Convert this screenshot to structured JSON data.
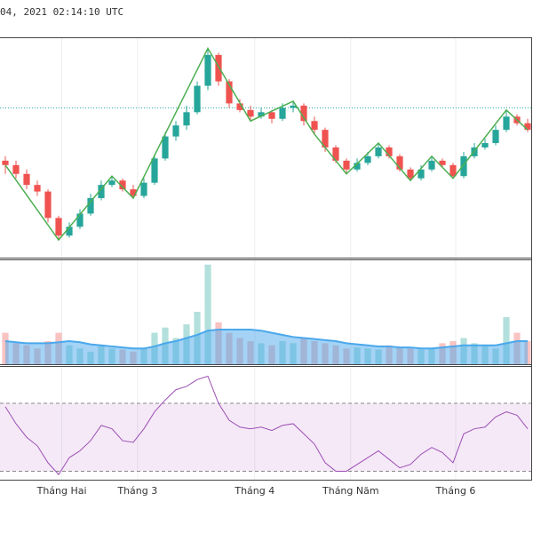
{
  "timestamp": "04, 2021 02:14:10 UTC",
  "chart_data": [
    {
      "type": "candlestick",
      "xlim": [
        -0.5,
        49.5
      ],
      "ylim": [
        0,
        100
      ],
      "grid": true,
      "xticks": [
        {
          "value": 5.3,
          "label": "Tháng Hai"
        },
        {
          "value": 12.4,
          "label": "Tháng 3"
        },
        {
          "value": 23.4,
          "label": "Tháng 4"
        },
        {
          "value": 32.4,
          "label": "Tháng Năm"
        },
        {
          "value": 42.25,
          "label": "Tháng 6"
        }
      ],
      "up_color": "#26a69a",
      "down_color": "#ef5350",
      "open": [
        44,
        42,
        38,
        33,
        30,
        18,
        10,
        14,
        20,
        27,
        33,
        35,
        31,
        28,
        34,
        45,
        55,
        60,
        66,
        78,
        92,
        80,
        70,
        67,
        64,
        66,
        63,
        68,
        69,
        62,
        58,
        50,
        44,
        40,
        43,
        46,
        50,
        46,
        40,
        36,
        40,
        44,
        42,
        37,
        46,
        50,
        52,
        58,
        64,
        61
      ],
      "high": [
        46,
        44,
        40,
        35,
        31,
        19,
        16,
        22,
        29,
        35,
        37,
        36,
        33,
        36,
        47,
        57,
        62,
        69,
        80,
        95,
        93,
        81,
        72,
        69,
        68,
        67,
        70,
        71,
        70,
        64,
        59,
        51,
        45,
        45,
        48,
        52,
        51,
        47,
        41,
        42,
        46,
        45,
        43,
        48,
        52,
        54,
        60,
        67,
        65,
        63
      ],
      "low": [
        38,
        36,
        31,
        28,
        16,
        8,
        9,
        13,
        19,
        26,
        32,
        30,
        27,
        27,
        33,
        44,
        53,
        58,
        65,
        76,
        78,
        68,
        66,
        62,
        63,
        61,
        62,
        66,
        60,
        56,
        48,
        43,
        38,
        39,
        42,
        45,
        45,
        39,
        35,
        35,
        39,
        41,
        36,
        36,
        45,
        49,
        51,
        57,
        60,
        57
      ],
      "close": [
        42,
        38,
        33,
        30,
        18,
        10,
        14,
        20,
        27,
        33,
        35,
        31,
        28,
        34,
        45,
        55,
        60,
        66,
        78,
        92,
        80,
        70,
        67,
        64,
        66,
        63,
        68,
        69,
        62,
        58,
        50,
        44,
        40,
        43,
        46,
        50,
        46,
        40,
        36,
        40,
        44,
        42,
        37,
        46,
        50,
        52,
        58,
        64,
        61,
        58
      ],
      "zigzag": {
        "color": "#4caf50",
        "x": [
          0,
          5,
          10,
          12,
          19,
          23,
          27,
          29,
          32,
          35,
          38,
          40,
          42,
          47,
          49
        ],
        "values": [
          42,
          8,
          37,
          27,
          95,
          62,
          71,
          56,
          38,
          52,
          35,
          46,
          36,
          67,
          58
        ]
      },
      "price_line": {
        "value": 68,
        "color": "#26a69a"
      }
    },
    {
      "type": "bar",
      "ylim": [
        0,
        100
      ],
      "values": [
        30,
        20,
        18,
        15,
        22,
        30,
        18,
        15,
        12,
        18,
        15,
        14,
        12,
        15,
        30,
        35,
        25,
        38,
        50,
        95,
        40,
        30,
        25,
        22,
        20,
        18,
        22,
        20,
        25,
        22,
        20,
        18,
        15,
        16,
        15,
        14,
        18,
        16,
        15,
        14,
        15,
        20,
        22,
        25,
        20,
        18,
        15,
        45,
        30,
        22
      ],
      "ma": [
        22,
        21,
        20,
        20,
        20,
        21,
        22,
        21,
        19,
        18,
        17,
        16,
        15,
        15,
        17,
        20,
        22,
        25,
        28,
        32,
        33,
        33,
        33,
        33,
        32,
        30,
        28,
        26,
        25,
        24,
        23,
        22,
        20,
        19,
        18,
        17,
        17,
        16,
        16,
        15,
        15,
        16,
        17,
        18,
        18,
        18,
        18,
        20,
        22,
        22
      ],
      "ma_color": "#4aa8ec"
    },
    {
      "type": "line",
      "ylim": [
        25,
        92
      ],
      "bands": [
        30,
        70
      ],
      "color": "#9c4fb5",
      "values": [
        68,
        58,
        50,
        45,
        35,
        28,
        38,
        42,
        48,
        57,
        55,
        48,
        47,
        55,
        65,
        72,
        78,
        80,
        84,
        86,
        70,
        60,
        56,
        55,
        56,
        54,
        57,
        58,
        52,
        46,
        35,
        30,
        30,
        34,
        38,
        42,
        37,
        32,
        34,
        40,
        44,
        41,
        35,
        52,
        55,
        56,
        62,
        65,
        63,
        55
      ]
    }
  ]
}
